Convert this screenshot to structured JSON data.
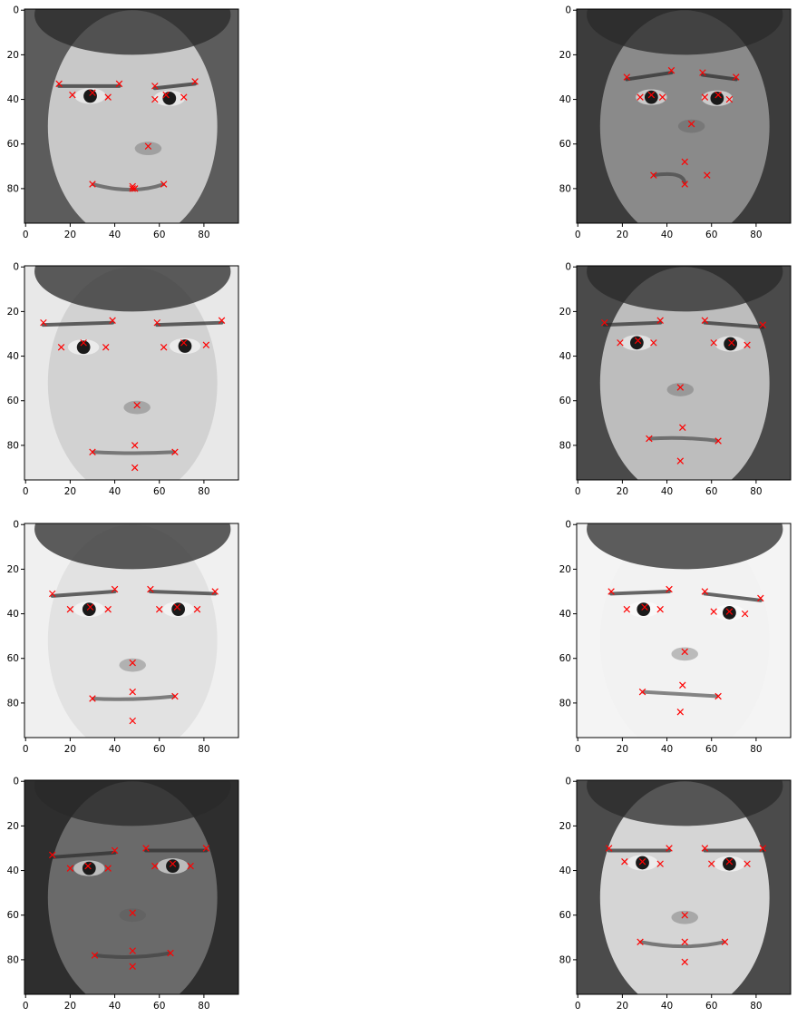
{
  "figure": {
    "grid": false,
    "axes_color": "#000000",
    "marker_color": "#ff0000",
    "marker": "x"
  },
  "chart_data": [
    {
      "type": "scatter",
      "description_of_background": "grayscale face image 96x96",
      "xlim": [
        0,
        95
      ],
      "ylim": [
        95,
        0
      ],
      "x_ticks": [
        0,
        20,
        40,
        60,
        80
      ],
      "y_ticks": [
        0,
        20,
        40,
        60,
        80
      ],
      "x_tick_labels": [
        "0",
        "20",
        "40",
        "60",
        "80"
      ],
      "y_tick_labels": [
        "0",
        "20",
        "40",
        "60",
        "80"
      ],
      "points": [
        [
          15,
          33
        ],
        [
          21,
          38
        ],
        [
          30,
          37
        ],
        [
          37,
          39
        ],
        [
          42,
          33
        ],
        [
          58,
          34
        ],
        [
          58,
          40
        ],
        [
          63,
          38
        ],
        [
          71,
          39
        ],
        [
          76,
          32
        ],
        [
          55,
          61
        ],
        [
          30,
          78
        ],
        [
          48,
          79
        ],
        [
          48,
          80
        ],
        [
          49,
          80
        ],
        [
          62,
          78
        ]
      ]
    },
    {
      "type": "scatter",
      "description_of_background": "grayscale face image 96x96",
      "xlim": [
        0,
        95
      ],
      "ylim": [
        95,
        0
      ],
      "x_ticks": [
        0,
        20,
        40,
        60,
        80
      ],
      "y_ticks": [
        0,
        20,
        40,
        60,
        80
      ],
      "x_tick_labels": [
        "0",
        "20",
        "40",
        "60",
        "80"
      ],
      "y_tick_labels": [
        "0",
        "20",
        "40",
        "60",
        "80"
      ],
      "points": [
        [
          22,
          30
        ],
        [
          28,
          39
        ],
        [
          33,
          38
        ],
        [
          38,
          39
        ],
        [
          42,
          27
        ],
        [
          56,
          28
        ],
        [
          57,
          39
        ],
        [
          63,
          38
        ],
        [
          68,
          40
        ],
        [
          71,
          30
        ],
        [
          51,
          51
        ],
        [
          34,
          74
        ],
        [
          48,
          68
        ],
        [
          48,
          78
        ],
        [
          58,
          74
        ]
      ]
    },
    {
      "type": "scatter",
      "description_of_background": "grayscale face image 96x96",
      "xlim": [
        0,
        95
      ],
      "ylim": [
        95,
        0
      ],
      "x_ticks": [
        0,
        20,
        40,
        60,
        80
      ],
      "y_ticks": [
        0,
        20,
        40,
        60,
        80
      ],
      "x_tick_labels": [
        "0",
        "20",
        "40",
        "60",
        "80"
      ],
      "y_tick_labels": [
        "0",
        "20",
        "40",
        "60",
        "80"
      ],
      "points": [
        [
          8,
          25
        ],
        [
          16,
          36
        ],
        [
          26,
          34
        ],
        [
          36,
          36
        ],
        [
          39,
          24
        ],
        [
          59,
          25
        ],
        [
          62,
          36
        ],
        [
          71,
          34
        ],
        [
          81,
          35
        ],
        [
          88,
          24
        ],
        [
          50,
          62
        ],
        [
          30,
          83
        ],
        [
          49,
          80
        ],
        [
          67,
          83
        ],
        [
          49,
          90
        ]
      ]
    },
    {
      "type": "scatter",
      "description_of_background": "grayscale face image 96x96",
      "xlim": [
        0,
        95
      ],
      "ylim": [
        95,
        0
      ],
      "x_ticks": [
        0,
        20,
        40,
        60,
        80
      ],
      "y_ticks": [
        0,
        20,
        40,
        60,
        80
      ],
      "x_tick_labels": [
        "0",
        "20",
        "40",
        "60",
        "80"
      ],
      "y_tick_labels": [
        "0",
        "20",
        "40",
        "60",
        "80"
      ],
      "points": [
        [
          12,
          25
        ],
        [
          19,
          34
        ],
        [
          27,
          33
        ],
        [
          34,
          34
        ],
        [
          37,
          24
        ],
        [
          57,
          24
        ],
        [
          61,
          34
        ],
        [
          69,
          34
        ],
        [
          76,
          35
        ],
        [
          83,
          26
        ],
        [
          46,
          54
        ],
        [
          32,
          77
        ],
        [
          47,
          72
        ],
        [
          63,
          78
        ],
        [
          46,
          87
        ]
      ]
    },
    {
      "type": "scatter",
      "description_of_background": "grayscale face image 96x96",
      "xlim": [
        0,
        95
      ],
      "ylim": [
        95,
        0
      ],
      "x_ticks": [
        0,
        20,
        40,
        60,
        80
      ],
      "y_ticks": [
        0,
        20,
        40,
        60,
        80
      ],
      "x_tick_labels": [
        "0",
        "20",
        "40",
        "60",
        "80"
      ],
      "y_tick_labels": [
        "0",
        "20",
        "40",
        "60",
        "80"
      ],
      "points": [
        [
          12,
          31
        ],
        [
          20,
          38
        ],
        [
          29,
          37
        ],
        [
          37,
          38
        ],
        [
          40,
          29
        ],
        [
          56,
          29
        ],
        [
          60,
          38
        ],
        [
          68,
          37
        ],
        [
          77,
          38
        ],
        [
          85,
          30
        ],
        [
          48,
          62
        ],
        [
          30,
          78
        ],
        [
          48,
          75
        ],
        [
          67,
          77
        ],
        [
          48,
          88
        ]
      ]
    },
    {
      "type": "scatter",
      "description_of_background": "grayscale face image 96x96",
      "xlim": [
        0,
        95
      ],
      "ylim": [
        95,
        0
      ],
      "x_ticks": [
        0,
        20,
        40,
        60,
        80
      ],
      "y_ticks": [
        0,
        20,
        40,
        60,
        80
      ],
      "x_tick_labels": [
        "0",
        "20",
        "40",
        "60",
        "80"
      ],
      "y_tick_labels": [
        "0",
        "20",
        "40",
        "60",
        "80"
      ],
      "points": [
        [
          15,
          30
        ],
        [
          22,
          38
        ],
        [
          30,
          37
        ],
        [
          37,
          38
        ],
        [
          41,
          29
        ],
        [
          57,
          30
        ],
        [
          61,
          39
        ],
        [
          68,
          39
        ],
        [
          75,
          40
        ],
        [
          82,
          33
        ],
        [
          48,
          57
        ],
        [
          29,
          75
        ],
        [
          47,
          72
        ],
        [
          63,
          77
        ],
        [
          46,
          84
        ]
      ]
    },
    {
      "type": "scatter",
      "description_of_background": "grayscale face image 96x96",
      "xlim": [
        0,
        95
      ],
      "ylim": [
        95,
        0
      ],
      "x_ticks": [
        0,
        20,
        40,
        60,
        80
      ],
      "y_ticks": [
        0,
        20,
        40,
        60,
        80
      ],
      "x_tick_labels": [
        "0",
        "20",
        "40",
        "60",
        "80"
      ],
      "y_tick_labels": [
        "0",
        "20",
        "40",
        "60",
        "80"
      ],
      "points": [
        [
          12,
          33
        ],
        [
          20,
          39
        ],
        [
          28,
          38
        ],
        [
          37,
          39
        ],
        [
          40,
          31
        ],
        [
          54,
          30
        ],
        [
          58,
          38
        ],
        [
          66,
          37
        ],
        [
          74,
          38
        ],
        [
          81,
          30
        ],
        [
          48,
          59
        ],
        [
          31,
          78
        ],
        [
          48,
          76
        ],
        [
          65,
          77
        ],
        [
          48,
          83
        ]
      ]
    },
    {
      "type": "scatter",
      "description_of_background": "grayscale face image 96x96",
      "xlim": [
        0,
        95
      ],
      "ylim": [
        95,
        0
      ],
      "x_ticks": [
        0,
        20,
        40,
        60,
        80
      ],
      "y_ticks": [
        0,
        20,
        40,
        60,
        80
      ],
      "x_tick_labels": [
        "0",
        "20",
        "40",
        "60",
        "80"
      ],
      "y_tick_labels": [
        "0",
        "20",
        "40",
        "60",
        "80"
      ],
      "points": [
        [
          14,
          30
        ],
        [
          21,
          36
        ],
        [
          29,
          36
        ],
        [
          37,
          37
        ],
        [
          41,
          30
        ],
        [
          57,
          30
        ],
        [
          60,
          37
        ],
        [
          68,
          36
        ],
        [
          76,
          37
        ],
        [
          83,
          30
        ],
        [
          48,
          60
        ],
        [
          28,
          72
        ],
        [
          48,
          72
        ],
        [
          66,
          72
        ],
        [
          48,
          81
        ]
      ]
    }
  ]
}
